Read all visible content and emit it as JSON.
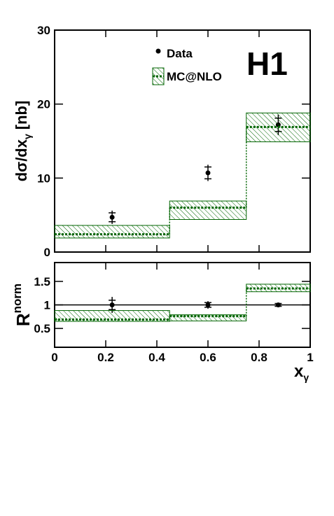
{
  "chart_data": [
    {
      "type": "step",
      "ylabel": {
        "text": "dσ/dx",
        "sub": "γ",
        "unit": "[nb]"
      },
      "annotation": "H1",
      "xlim": [
        0,
        1
      ],
      "xticks": [
        0,
        0.2,
        0.4,
        0.6,
        0.8,
        1
      ],
      "ylim": [
        0,
        30
      ],
      "yticks": [
        0,
        10,
        20,
        30
      ],
      "series": [
        {
          "name": "Data",
          "color": "#000000",
          "x": [
            0.225,
            0.6,
            0.875
          ],
          "values": [
            4.7,
            10.7,
            17.2
          ],
          "stat_errors": [
            0.6,
            0.8,
            0.9
          ],
          "total_errors": [
            0.9,
            1.1,
            1.4
          ]
        },
        {
          "name": "MC@NLO",
          "color": "#006400",
          "bins": [
            0,
            0.45,
            0.75,
            1
          ],
          "values": [
            2.4,
            6.0,
            16.9
          ],
          "band_low": [
            1.9,
            4.4,
            14.9
          ],
          "band_high": [
            3.6,
            6.9,
            18.8
          ]
        }
      ]
    },
    {
      "type": "step",
      "ylabel": {
        "text": "R",
        "sup": "norm"
      },
      "xlabel": {
        "text": "x",
        "sub": "γ"
      },
      "xlim": [
        0,
        1
      ],
      "xticks": [
        0,
        0.2,
        0.4,
        0.6,
        0.8,
        1
      ],
      "ylim": [
        0.1,
        1.9
      ],
      "yticks": [
        0.5,
        1,
        1.5
      ],
      "reference": 1,
      "series": [
        {
          "color": "#000000",
          "x": [
            0.225,
            0.6,
            0.875
          ],
          "values": [
            1.0,
            1.0,
            1.0
          ],
          "stat_errors": [
            0.1,
            0.05,
            0.03
          ],
          "total_errors": [
            0.17,
            0.08,
            0.04
          ]
        },
        {
          "color": "#006400",
          "bins": [
            0,
            0.45,
            0.75,
            1
          ],
          "values": [
            0.69,
            0.76,
            1.35
          ],
          "band_low": [
            0.65,
            0.66,
            1.28
          ],
          "band_high": [
            0.88,
            0.79,
            1.44
          ]
        }
      ]
    }
  ]
}
